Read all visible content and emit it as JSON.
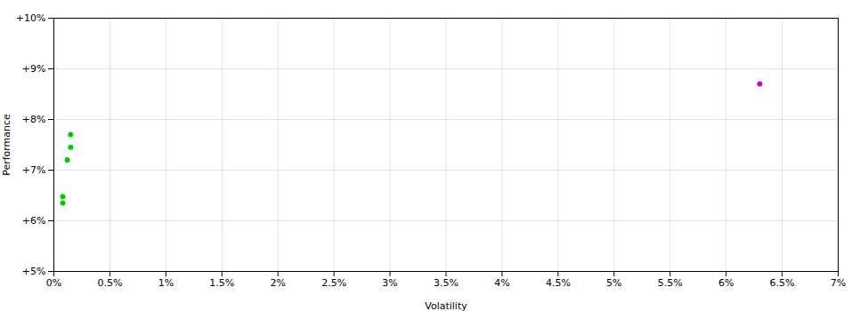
{
  "chart_data": {
    "type": "scatter",
    "xlabel": "Volatility",
    "ylabel": "Performance",
    "series": [
      {
        "color": "#00cc00",
        "x": [
          0.0015,
          0.0015,
          0.0012,
          0.0008,
          0.0008
        ],
        "values": [
          0.077,
          0.0745,
          0.072,
          0.0648,
          0.0635
        ]
      },
      {
        "color": "#cc00cc",
        "x": [
          0.063
        ],
        "values": [
          0.087
        ]
      }
    ],
    "xlim": [
      0,
      0.07
    ],
    "ylim": [
      0.05,
      0.1
    ],
    "xticks": [
      {
        "value": 0.0,
        "label": "0%"
      },
      {
        "value": 0.005,
        "label": "0.5%"
      },
      {
        "value": 0.01,
        "label": "1%"
      },
      {
        "value": 0.015,
        "label": "1.5%"
      },
      {
        "value": 0.02,
        "label": "2%"
      },
      {
        "value": 0.025,
        "label": "2.5%"
      },
      {
        "value": 0.03,
        "label": "3%"
      },
      {
        "value": 0.035,
        "label": "3.5%"
      },
      {
        "value": 0.04,
        "label": "4%"
      },
      {
        "value": 0.045,
        "label": "4.5%"
      },
      {
        "value": 0.05,
        "label": "5%"
      },
      {
        "value": 0.055,
        "label": "5.5%"
      },
      {
        "value": 0.06,
        "label": "6%"
      },
      {
        "value": 0.065,
        "label": "6.5%"
      },
      {
        "value": 0.07,
        "label": "7%"
      }
    ],
    "yticks": [
      {
        "value": 0.05,
        "label": "+5%"
      },
      {
        "value": 0.06,
        "label": "+6%"
      },
      {
        "value": 0.07,
        "label": "+7%"
      },
      {
        "value": 0.08,
        "label": "+8%"
      },
      {
        "value": 0.09,
        "label": "+9%"
      },
      {
        "value": 0.1,
        "label": "+10%"
      }
    ],
    "grid": true
  }
}
